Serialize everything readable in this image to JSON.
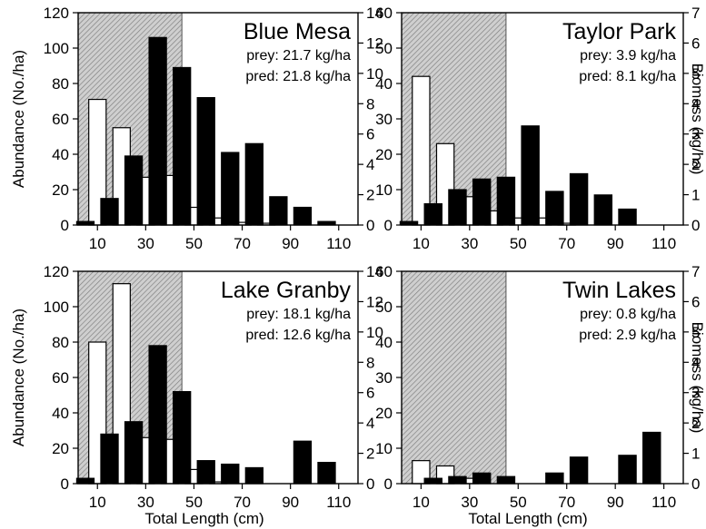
{
  "figure": {
    "left_axis_label": "Abundance (No./ha)",
    "right_axis_label": "Biomass (kg/ha)",
    "bottom_axis_label": "Total Length (cm)"
  },
  "chart_data": [
    {
      "type": "bar",
      "title": "Blue Mesa",
      "annotations": [
        "prey: 21.7 kg/ha",
        "pred: 21.8 kg/ha"
      ],
      "xlabel": "",
      "ylabel": "Abundance (No./ha)",
      "y2label": "",
      "xticks": [
        10,
        30,
        50,
        70,
        90,
        110
      ],
      "xlim": [
        2,
        118
      ],
      "ylim": [
        0,
        120
      ],
      "y2lim": [
        0,
        14
      ],
      "yticks": [
        0,
        20,
        40,
        60,
        80,
        100,
        120
      ],
      "y2ticks": [
        0,
        2,
        4,
        6,
        8,
        10,
        12,
        14
      ],
      "shaded_region": [
        2,
        45
      ],
      "series": [
        {
          "style": "open",
          "axis": "left",
          "x": [
            10,
            20,
            30,
            40,
            50,
            60,
            70,
            80
          ],
          "values": [
            71,
            55,
            27,
            28,
            10,
            4,
            1.5,
            1
          ]
        },
        {
          "style": "filled",
          "axis": "left",
          "x": [
            5,
            15,
            25,
            35,
            45,
            55,
            65,
            75,
            85,
            95,
            105
          ],
          "values": [
            2,
            15,
            39,
            106,
            89,
            72,
            41,
            46,
            16,
            10,
            2
          ]
        }
      ]
    },
    {
      "type": "bar",
      "title": "Taylor Park",
      "annotations": [
        "prey: 3.9 kg/ha",
        "pred: 8.1 kg/ha"
      ],
      "xlabel": "",
      "ylabel": "",
      "y2label": "Biomass (kg/ha)",
      "xticks": [
        10,
        30,
        50,
        70,
        90,
        110
      ],
      "xlim": [
        2,
        118
      ],
      "ylim": [
        0,
        60
      ],
      "y2lim": [
        0,
        7
      ],
      "yticks": [
        0,
        10,
        20,
        30,
        40,
        50,
        60
      ],
      "y2ticks": [
        0,
        1,
        2,
        3,
        4,
        5,
        6,
        7
      ],
      "shaded_region": [
        2,
        45
      ],
      "series": [
        {
          "style": "open",
          "axis": "left",
          "x": [
            10,
            20,
            30,
            40,
            50,
            60,
            70
          ],
          "values": [
            42,
            23,
            8,
            4,
            2,
            2,
            0.5
          ]
        },
        {
          "style": "filled",
          "axis": "left",
          "x": [
            5,
            15,
            25,
            35,
            45,
            55,
            65,
            75,
            85,
            95
          ],
          "values": [
            1,
            6,
            10,
            13,
            13.5,
            28,
            9.5,
            14.5,
            8.5,
            4.5
          ]
        }
      ]
    },
    {
      "type": "bar",
      "title": "Lake Granby",
      "annotations": [
        "prey: 18.1 kg/ha",
        "pred: 12.6 kg/ha"
      ],
      "xlabel": "Total Length (cm)",
      "ylabel": "Abundance (No./ha)",
      "y2label": "",
      "xticks": [
        10,
        30,
        50,
        70,
        90,
        110
      ],
      "xlim": [
        2,
        118
      ],
      "ylim": [
        0,
        120
      ],
      "y2lim": [
        0,
        14
      ],
      "yticks": [
        0,
        20,
        40,
        60,
        80,
        100,
        120
      ],
      "y2ticks": [
        0,
        2,
        4,
        6,
        8,
        10,
        12,
        14
      ],
      "shaded_region": [
        2,
        45
      ],
      "series": [
        {
          "style": "open",
          "axis": "left",
          "x": [
            10,
            20,
            30,
            40,
            50,
            60
          ],
          "values": [
            80,
            113,
            26,
            25,
            8,
            1
          ]
        },
        {
          "style": "filled",
          "axis": "left",
          "x": [
            5,
            15,
            25,
            35,
            45,
            55,
            65,
            75,
            95,
            105
          ],
          "values": [
            3,
            28,
            35,
            78,
            52,
            13,
            11,
            9,
            24,
            12
          ]
        }
      ]
    },
    {
      "type": "bar",
      "title": "Twin Lakes",
      "annotations": [
        "prey: 0.8 kg/ha",
        "pred: 2.9 kg/ha"
      ],
      "xlabel": "Total Length (cm)",
      "ylabel": "",
      "y2label": "Biomass (kg/ha)",
      "xticks": [
        10,
        30,
        50,
        70,
        90,
        110
      ],
      "xlim": [
        2,
        118
      ],
      "ylim": [
        0,
        60
      ],
      "y2lim": [
        0,
        7
      ],
      "yticks": [
        0,
        10,
        20,
        30,
        40,
        50,
        60
      ],
      "y2ticks": [
        0,
        1,
        2,
        3,
        4,
        5,
        6,
        7
      ],
      "shaded_region": [
        2,
        45
      ],
      "series": [
        {
          "style": "open",
          "axis": "left",
          "x": [
            10,
            20,
            30
          ],
          "values": [
            6.5,
            5,
            1.5
          ]
        },
        {
          "style": "filled",
          "axis": "left",
          "x": [
            15,
            25,
            35,
            45,
            65,
            75,
            95,
            105
          ],
          "values": [
            1.5,
            2,
            3,
            2,
            3,
            7.5,
            8,
            14.5
          ]
        }
      ]
    }
  ]
}
